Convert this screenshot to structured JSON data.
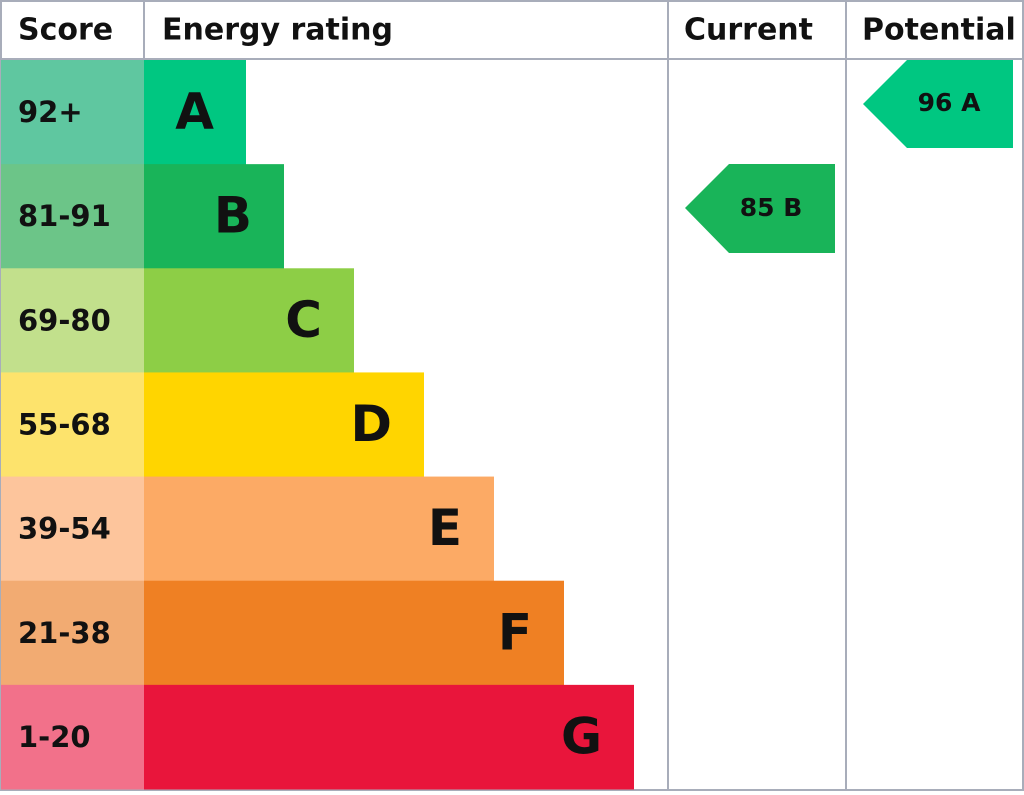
{
  "header": {
    "score": "Score",
    "rating": "Energy rating",
    "current": "Current",
    "potential": "Potential"
  },
  "bands": [
    {
      "score": "92+",
      "letter": "A",
      "score_color": "#5fc7a0",
      "color": "#00c781"
    },
    {
      "score": "81-91",
      "letter": "B",
      "score_color": "#6cc588",
      "color": "#19b459"
    },
    {
      "score": "69-80",
      "letter": "C",
      "score_color": "#c2e08c",
      "color": "#8dce46"
    },
    {
      "score": "55-68",
      "letter": "D",
      "score_color": "#fde36c",
      "color": "#ffd500"
    },
    {
      "score": "39-54",
      "letter": "E",
      "score_color": "#fdc59c",
      "color": "#fcaa65"
    },
    {
      "score": "21-38",
      "letter": "F",
      "score_color": "#f2ab72",
      "color": "#ef8023"
    },
    {
      "score": "1-20",
      "letter": "G",
      "score_color": "#f2718a",
      "color": "#e9153b"
    }
  ],
  "current": {
    "label": "85 B"
  },
  "potential": {
    "label": "96 A"
  }
}
